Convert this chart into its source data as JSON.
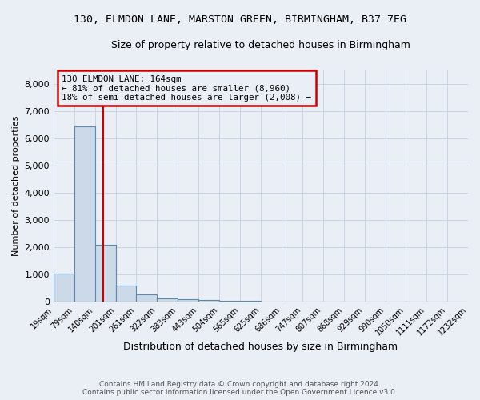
{
  "title_line1": "130, ELMDON LANE, MARSTON GREEN, BIRMINGHAM, B37 7EG",
  "title_line2": "Size of property relative to detached houses in Birmingham",
  "xlabel": "Distribution of detached houses by size in Birmingham",
  "ylabel": "Number of detached properties",
  "annotation_line1": "130 ELMDON LANE: 164sqm",
  "annotation_line2": "← 81% of detached houses are smaller (8,960)",
  "annotation_line3": "18% of semi-detached houses are larger (2,008) →",
  "property_size": 164,
  "footer_line1": "Contains HM Land Registry data © Crown copyright and database right 2024.",
  "footer_line2": "Contains public sector information licensed under the Open Government Licence v3.0.",
  "bar_edges": [
    19,
    79,
    140,
    201,
    261,
    322,
    383,
    443,
    504,
    565,
    625,
    686,
    747,
    807,
    868,
    929,
    990,
    1050,
    1111,
    1172,
    1232
  ],
  "bar_heights": [
    1050,
    6450,
    2100,
    600,
    270,
    130,
    90,
    60,
    40,
    50,
    0,
    0,
    0,
    0,
    0,
    0,
    0,
    0,
    0,
    0
  ],
  "bar_color": "#ccd9e8",
  "bar_edge_color": "#5a8ab0",
  "red_line_color": "#cc0000",
  "annotation_box_color": "#cc0000",
  "grid_color": "#c8d4e4",
  "background_color": "#eaeef5",
  "ylim": [
    0,
    8500
  ],
  "yticks": [
    0,
    1000,
    2000,
    3000,
    4000,
    5000,
    6000,
    7000,
    8000
  ]
}
